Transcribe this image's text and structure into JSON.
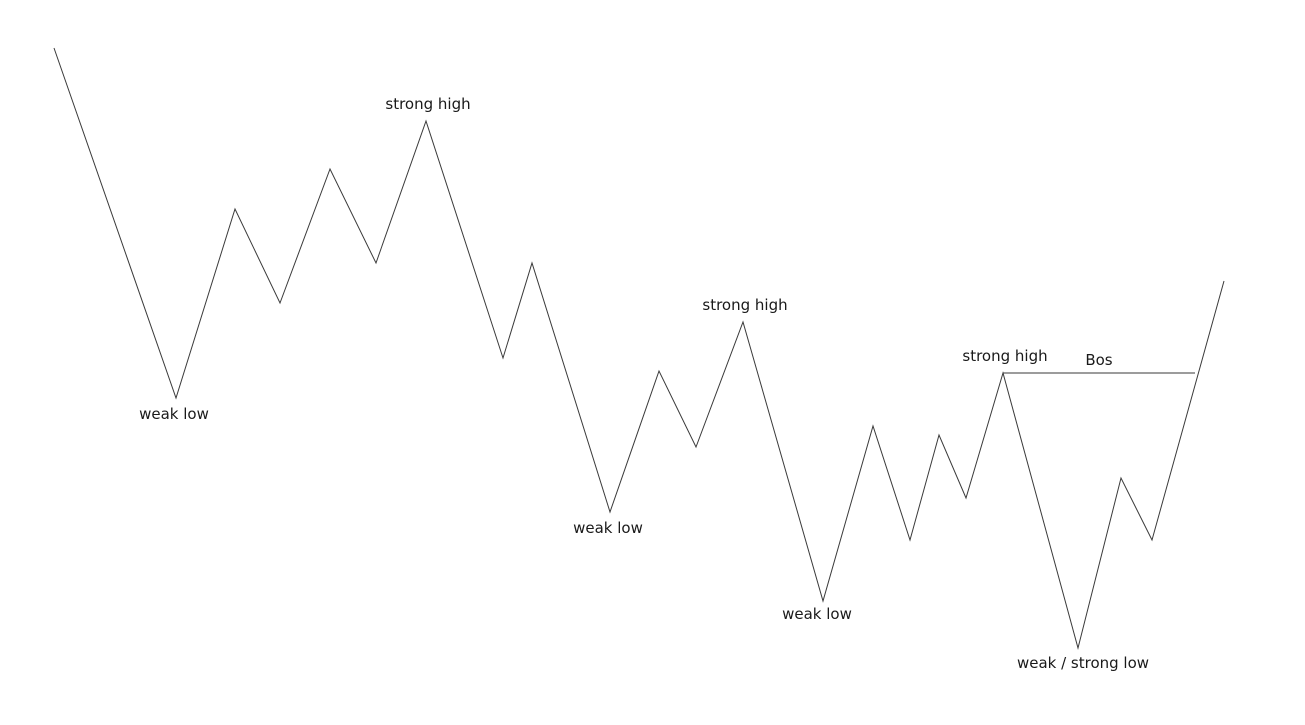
{
  "labels": {
    "strong_high_1": "strong high",
    "strong_high_2": "strong high",
    "strong_high_3": "strong high",
    "weak_low_1": "weak low",
    "weak_low_2": "weak low",
    "weak_low_3": "weak low",
    "weak_strong_low": "weak / strong low",
    "bos": "Bos"
  },
  "colors": {
    "line": "#3a3a3a",
    "text": "#1a1a1a",
    "background": "#ffffff"
  }
}
